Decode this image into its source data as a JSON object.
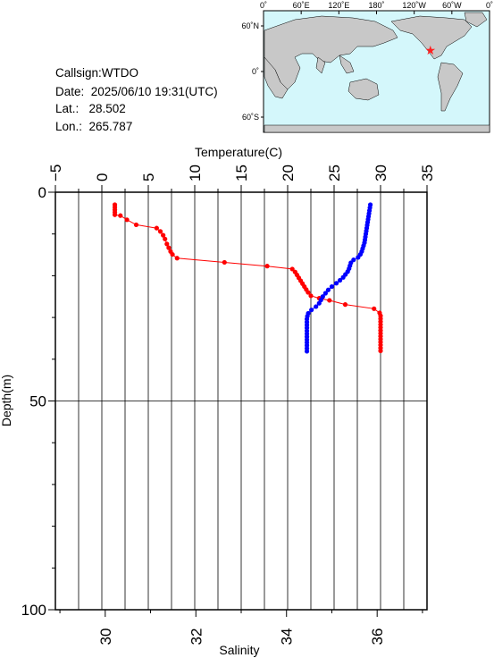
{
  "info": {
    "callsign": "Callsign:WTDO",
    "date": "Date:  2025/06/10 19:31(UTC)",
    "lat": "Lat.:   28.502",
    "lon": "Lon.:  265.787"
  },
  "map": {
    "lon_labels": [
      "0˚",
      "60˚E",
      "120˚E",
      "180˚",
      "120˚W",
      "60˚W",
      "0˚"
    ],
    "lat_labels": [
      "60˚N",
      "0˚",
      "60˚S"
    ],
    "ocean_color": "#d4f7fb",
    "land_color": "#c8c8c8",
    "marker_color": "#ff2020",
    "marker_icon": "star-icon",
    "station": {
      "lat": 28.502,
      "lon": 265.787
    }
  },
  "chart_data": {
    "type": "line",
    "xlabel_top": "Temperature(C)",
    "xlabel_bottom": "Salinity",
    "ylabel": "Depth(m)",
    "temperature_ticks": [
      "−5",
      "0",
      "5",
      "10",
      "15",
      "20",
      "25",
      "30",
      "35"
    ],
    "temperature_range": [
      -5,
      35
    ],
    "salinity_ticks": [
      "30",
      "32",
      "34",
      "36"
    ],
    "salinity_range": [
      28.9,
      37.1
    ],
    "depth_ticks": [
      "0",
      "50",
      "100"
    ],
    "depth_range": [
      0,
      100
    ],
    "grid": true,
    "series": [
      {
        "color": "#ff0000",
        "axis": "temperature",
        "points": [
          [
            1.4,
            3
          ],
          [
            1.4,
            3.6
          ],
          [
            1.4,
            4.2
          ],
          [
            1.4,
            4.8
          ],
          [
            1.4,
            5.4
          ],
          [
            2.0,
            5.6
          ],
          [
            2.7,
            6.6
          ],
          [
            3.7,
            7.8
          ],
          [
            5.9,
            8.6
          ],
          [
            6.3,
            9.4
          ],
          [
            6.6,
            10.3
          ],
          [
            6.8,
            11.2
          ],
          [
            7.0,
            12.4
          ],
          [
            7.2,
            13.3
          ],
          [
            7.4,
            14.2
          ],
          [
            7.6,
            14.9
          ],
          [
            8.1,
            15.8
          ],
          [
            13.2,
            16.8
          ],
          [
            17.8,
            17.7
          ],
          [
            20.5,
            18.4
          ],
          [
            20.8,
            19.1
          ],
          [
            21.0,
            19.8
          ],
          [
            21.2,
            20.5
          ],
          [
            21.4,
            21.2
          ],
          [
            21.6,
            21.9
          ],
          [
            21.8,
            22.6
          ],
          [
            22.0,
            23.3
          ],
          [
            22.2,
            24.0
          ],
          [
            22.5,
            24.8
          ],
          [
            23.4,
            25.4
          ],
          [
            24.5,
            25.9
          ],
          [
            26.2,
            26.9
          ],
          [
            29.3,
            27.9
          ],
          [
            29.9,
            28.9
          ],
          [
            30.0,
            29.6
          ],
          [
            30.0,
            30.3
          ],
          [
            30.0,
            31.0
          ],
          [
            30.0,
            31.7
          ],
          [
            30.0,
            32.4
          ],
          [
            30.0,
            33.1
          ],
          [
            30.0,
            33.8
          ],
          [
            30.0,
            34.5
          ],
          [
            30.0,
            35.2
          ],
          [
            30.0,
            35.9
          ],
          [
            30.0,
            36.6
          ],
          [
            30.0,
            37.3
          ],
          [
            30.0,
            38.0
          ]
        ]
      },
      {
        "color": "#0000ff",
        "axis": "salinity",
        "points": [
          [
            35.85,
            3
          ],
          [
            35.84,
            3.7
          ],
          [
            35.83,
            4.4
          ],
          [
            35.82,
            5.1
          ],
          [
            35.81,
            5.8
          ],
          [
            35.8,
            6.5
          ],
          [
            35.79,
            7.2
          ],
          [
            35.78,
            7.9
          ],
          [
            35.77,
            8.6
          ],
          [
            35.76,
            9.3
          ],
          [
            35.75,
            10.0
          ],
          [
            35.74,
            10.7
          ],
          [
            35.73,
            11.4
          ],
          [
            35.72,
            12.1
          ],
          [
            35.7,
            12.8
          ],
          [
            35.68,
            13.5
          ],
          [
            35.66,
            14.2
          ],
          [
            35.63,
            14.9
          ],
          [
            35.58,
            15.6
          ],
          [
            35.48,
            16.2
          ],
          [
            35.42,
            16.9
          ],
          [
            35.4,
            17.6
          ],
          [
            35.38,
            18.3
          ],
          [
            35.35,
            19.0
          ],
          [
            35.3,
            19.7
          ],
          [
            35.25,
            20.4
          ],
          [
            35.18,
            21.1
          ],
          [
            35.1,
            21.8
          ],
          [
            35.0,
            22.6
          ],
          [
            34.92,
            23.4
          ],
          [
            34.86,
            24.2
          ],
          [
            34.8,
            25.0
          ],
          [
            34.76,
            25.8
          ],
          [
            34.72,
            26.6
          ],
          [
            34.65,
            27.4
          ],
          [
            34.55,
            28.2
          ],
          [
            34.48,
            29.0
          ],
          [
            34.46,
            29.7
          ],
          [
            34.45,
            30.4
          ],
          [
            34.45,
            31.1
          ],
          [
            34.45,
            31.8
          ],
          [
            34.45,
            32.5
          ],
          [
            34.45,
            33.2
          ],
          [
            34.45,
            33.9
          ],
          [
            34.45,
            34.6
          ],
          [
            34.45,
            35.3
          ],
          [
            34.45,
            36.0
          ],
          [
            34.45,
            36.7
          ],
          [
            34.45,
            37.4
          ],
          [
            34.45,
            38.1
          ]
        ]
      }
    ]
  }
}
